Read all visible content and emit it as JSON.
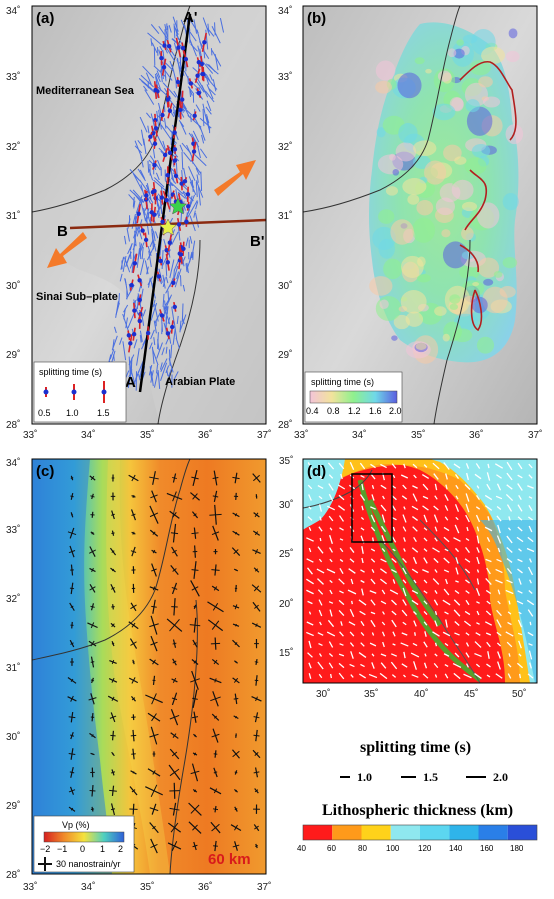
{
  "panels": {
    "a": {
      "label": "(a)",
      "labels": {
        "sea": "Mediterranean Sea",
        "sinai": "Sinai Sub–plate",
        "arabian": "Arabian Plate",
        "A_top": "A'",
        "A_bottom": "A",
        "B_left": "B",
        "B_right": "B'"
      },
      "legend": {
        "title": "splitting time (s)",
        "values": [
          "0.5",
          "1.0",
          "1.5"
        ]
      },
      "x_ticks": [
        "33˚",
        "34˚",
        "35˚",
        "36˚",
        "37˚"
      ],
      "y_ticks": [
        "28˚",
        "29˚",
        "30˚",
        "31˚",
        "32˚",
        "33˚",
        "34˚"
      ]
    },
    "b": {
      "label": "(b)",
      "colorbar_title": "splitting time (s)",
      "colorbar_ticks": [
        "0.4",
        "0.8",
        "1.2",
        "1.6",
        "2.0"
      ],
      "x_ticks": [
        "33˚",
        "34˚",
        "35˚",
        "36˚",
        "37˚"
      ],
      "y_ticks": [
        "28˚",
        "29˚",
        "30˚",
        "31˚",
        "32˚",
        "33˚",
        "34˚"
      ]
    },
    "c": {
      "label": "(c)",
      "vp_title": "Vp (%)",
      "vp_ticks": [
        "−2",
        "−1",
        "0",
        "1",
        "2"
      ],
      "strain_label": "30 nanostrain/yr",
      "depth": "60 km",
      "x_ticks": [
        "33˚",
        "34˚",
        "35˚",
        "36˚",
        "37˚"
      ],
      "y_ticks": [
        "28˚",
        "29˚",
        "30˚",
        "31˚",
        "32˚",
        "33˚",
        "34˚"
      ]
    },
    "d": {
      "label": "(d)",
      "x_ticks": [
        "30˚",
        "35˚",
        "40˚",
        "45˚",
        "50˚"
      ],
      "y_ticks": [
        "15˚",
        "20˚",
        "25˚",
        "30˚",
        "35˚"
      ],
      "splitting_title": "splitting time (s)",
      "splitting_values": [
        "1.0",
        "1.5",
        "2.0"
      ],
      "thickness_title": "Lithospheric thickness (km)",
      "thickness_ticks": [
        "40",
        "60",
        "80",
        "100",
        "120",
        "140",
        "160",
        "180"
      ]
    }
  }
}
